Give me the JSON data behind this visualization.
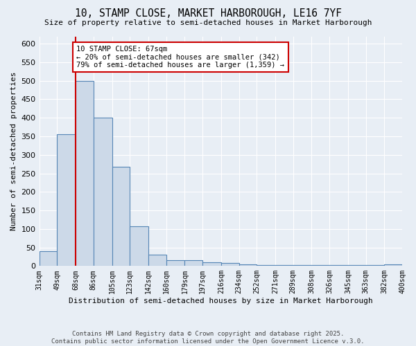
{
  "title": "10, STAMP CLOSE, MARKET HARBOROUGH, LE16 7YF",
  "subtitle": "Size of property relative to semi-detached houses in Market Harborough",
  "xlabel": "Distribution of semi-detached houses by size in Market Harborough",
  "ylabel": "Number of semi-detached properties",
  "footnote": "Contains HM Land Registry data © Crown copyright and database right 2025.\nContains public sector information licensed under the Open Government Licence v.3.0.",
  "bar_values": [
    40,
    355,
    500,
    400,
    268,
    107,
    30,
    15,
    15,
    10,
    8,
    5,
    3,
    3,
    3,
    3,
    2,
    2,
    2,
    5
  ],
  "bin_edges": [
    31,
    49,
    68,
    86,
    105,
    123,
    142,
    160,
    179,
    197,
    216,
    234,
    252,
    271,
    289,
    308,
    326,
    345,
    363,
    382,
    400
  ],
  "x_tick_labels": [
    "31sqm",
    "49sqm",
    "68sqm",
    "86sqm",
    "105sqm",
    "123sqm",
    "142sqm",
    "160sqm",
    "179sqm",
    "197sqm",
    "216sqm",
    "234sqm",
    "252sqm",
    "271sqm",
    "289sqm",
    "308sqm",
    "326sqm",
    "345sqm",
    "363sqm",
    "382sqm",
    "400sqm"
  ],
  "property_line_x": 68,
  "bar_color": "#ccd9e8",
  "bar_edge_color": "#5585b5",
  "red_line_color": "#cc0000",
  "annotation_text": "10 STAMP CLOSE: 67sqm\n← 20% of semi-detached houses are smaller (342)\n79% of semi-detached houses are larger (1,359) →",
  "annotation_box_color": "#ffffff",
  "annotation_box_edge": "#cc0000",
  "bg_color": "#e8eef5",
  "plot_bg_color": "#e8eef5",
  "ylim": [
    0,
    620
  ],
  "yticks": [
    0,
    50,
    100,
    150,
    200,
    250,
    300,
    350,
    400,
    450,
    500,
    550,
    600
  ],
  "grid_color": "#ffffff",
  "footnote_color": "#444444"
}
